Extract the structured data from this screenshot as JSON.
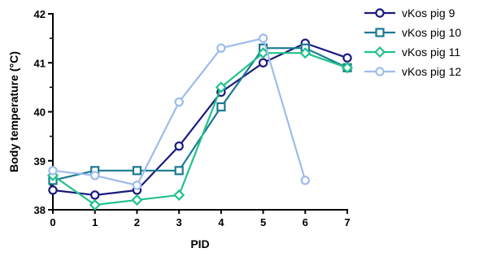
{
  "chart_data": {
    "type": "line",
    "xlabel": "PID",
    "ylabel": "Body temperature (°C)",
    "xlim": [
      0,
      7
    ],
    "ylim": [
      38,
      42
    ],
    "x_ticks": [
      0,
      1,
      2,
      3,
      4,
      5,
      6,
      7
    ],
    "y_ticks": [
      38,
      39,
      40,
      41,
      42
    ],
    "grid": false,
    "legend_position": "top-right",
    "series": [
      {
        "name": "vKos pig 9",
        "color": "#1a1a7e",
        "marker": "circle",
        "x": [
          0,
          1,
          2,
          3,
          4,
          5,
          6,
          7
        ],
        "y": [
          38.4,
          38.3,
          38.4,
          39.3,
          40.4,
          41.0,
          41.4,
          41.1
        ]
      },
      {
        "name": "vKos pig 10",
        "color": "#1a7a92",
        "marker": "square",
        "x": [
          0,
          1,
          2,
          3,
          4,
          5,
          6,
          7
        ],
        "y": [
          38.6,
          38.8,
          38.8,
          38.8,
          40.1,
          41.3,
          41.3,
          40.9
        ]
      },
      {
        "name": "vKos pig 11",
        "color": "#22c28a",
        "marker": "diamond",
        "x": [
          0,
          1,
          2,
          3,
          4,
          5,
          6,
          7
        ],
        "y": [
          38.7,
          38.1,
          38.2,
          38.3,
          40.5,
          41.2,
          41.2,
          40.9
        ]
      },
      {
        "name": "vKos pig 12",
        "color": "#9dbcec",
        "marker": "circle",
        "x": [
          0,
          1,
          2,
          3,
          4,
          5,
          6
        ],
        "y": [
          38.8,
          38.7,
          38.5,
          40.2,
          41.3,
          41.5,
          38.6
        ]
      }
    ]
  }
}
